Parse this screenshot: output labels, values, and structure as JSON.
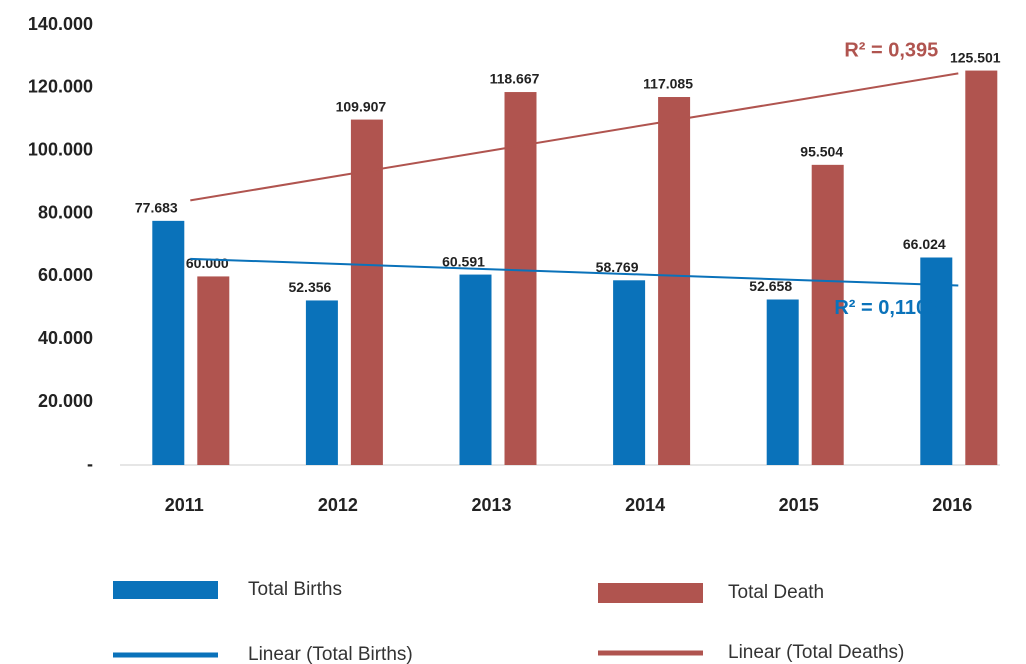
{
  "chart_data": {
    "type": "bar",
    "categories": [
      "2011",
      "2012",
      "2013",
      "2014",
      "2015",
      "2016"
    ],
    "series": [
      {
        "name": "Total Births",
        "color": "#0a72ba",
        "values": [
          77683,
          52356,
          60591,
          58769,
          52658,
          66024
        ],
        "value_labels": [
          "77.683",
          "52.356",
          "60.591",
          "58.769",
          "52.658",
          "66.024"
        ]
      },
      {
        "name": "Total Death",
        "color": "#b0544f",
        "values": [
          60000,
          109907,
          118667,
          117085,
          95504,
          125501
        ],
        "value_labels": [
          "60.000",
          "109.907",
          "118.667",
          "117.085",
          "95.504",
          "125.501"
        ]
      }
    ],
    "trendlines": [
      {
        "name": "Linear (Total Births)",
        "color": "#0a72ba",
        "values": [
          65600,
          63900,
          62200,
          60500,
          58800,
          57100
        ],
        "annotation": "R² = 0,1108"
      },
      {
        "name": "Linear (Total Deaths)",
        "color": "#b0544f",
        "values": [
          84200,
          92300,
          100400,
          108500,
          116500,
          124600
        ],
        "annotation": "R² = 0,395"
      }
    ],
    "ylim": [
      0,
      140000
    ],
    "yticks": [
      {
        "value": 0,
        "label": "-"
      },
      {
        "value": 20000,
        "label": "20.000"
      },
      {
        "value": 40000,
        "label": "40.000"
      },
      {
        "value": 60000,
        "label": "60.000"
      },
      {
        "value": 80000,
        "label": "80.000"
      },
      {
        "value": 100000,
        "label": "100.000"
      },
      {
        "value": 120000,
        "label": "120.000"
      },
      {
        "value": 140000,
        "label": "140.000"
      }
    ]
  }
}
